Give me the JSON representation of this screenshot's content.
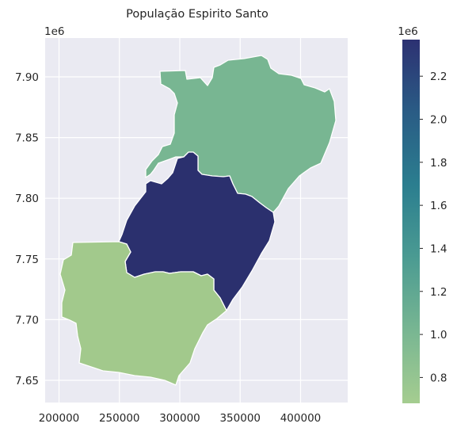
{
  "figure": {
    "title": "População Espirito Santo"
  },
  "map": {
    "x_ticks": [
      {
        "value": 200000,
        "label": "200000"
      },
      {
        "value": 250000,
        "label": "250000"
      },
      {
        "value": 300000,
        "label": "300000"
      },
      {
        "value": 350000,
        "label": "350000"
      },
      {
        "value": 400000,
        "label": "400000"
      }
    ],
    "y_ticks": [
      {
        "value": 7.65,
        "label": "7.65"
      },
      {
        "value": 7.7,
        "label": "7.70"
      },
      {
        "value": 7.75,
        "label": "7.75"
      },
      {
        "value": 7.8,
        "label": "7.80"
      },
      {
        "value": 7.85,
        "label": "7.85"
      },
      {
        "value": 7.9,
        "label": "7.90"
      }
    ],
    "y_offset_label": "1e6",
    "background_color": "#eaeaf2",
    "grid": true,
    "regions": [
      {
        "id": "north",
        "population": 1000000,
        "color": "#78b692"
      },
      {
        "id": "central",
        "population": 2370000,
        "color": "#2b306e"
      },
      {
        "id": "south",
        "population": 700000,
        "color": "#a2c98c"
      }
    ]
  },
  "colorbar": {
    "offset_label": "1e6",
    "min": 0.68,
    "max": 2.37,
    "colormap": "crest",
    "ticks": [
      {
        "value": 0.8,
        "label": "0.8"
      },
      {
        "value": 1.0,
        "label": "1.0"
      },
      {
        "value": 1.2,
        "label": "1.2"
      },
      {
        "value": 1.4,
        "label": "1.4"
      },
      {
        "value": 1.6,
        "label": "1.6"
      },
      {
        "value": 1.8,
        "label": "1.8"
      },
      {
        "value": 2.0,
        "label": "2.0"
      },
      {
        "value": 2.2,
        "label": "2.2"
      }
    ]
  }
}
